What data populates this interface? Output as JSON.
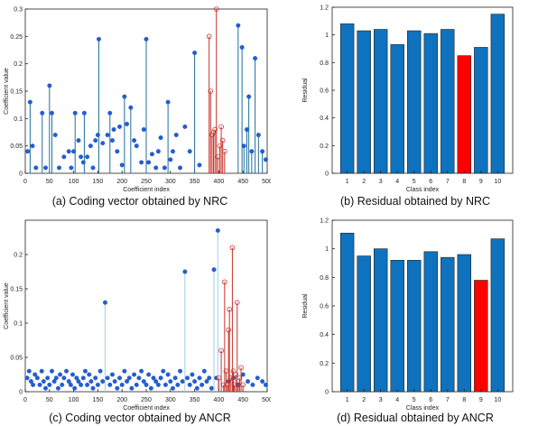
{
  "colors": {
    "blue": "#1f5fd6",
    "stem_blue": "#1f6f9c",
    "faint_blue": "#9fd0e8",
    "red": "#c8322a",
    "bar_blue": "#0e72be",
    "bar_red": "#ff0000"
  },
  "panels": [
    {
      "id": "a",
      "caption": "(a) Coding vector obtained by NRC",
      "chart_data": {
        "type": "scatter",
        "xlabel": "Coefficient index",
        "ylabel": "Coefficient value",
        "xlim": [
          0,
          500
        ],
        "ylim": [
          0,
          0.3
        ],
        "xticks": [
          0,
          50,
          100,
          150,
          200,
          250,
          300,
          350,
          400,
          450,
          500
        ],
        "xtick_labels": [
          "0",
          "50",
          "100",
          "150",
          "200",
          "250",
          "300",
          "350",
          "400",
          "450",
          "500"
        ],
        "yticks": [
          0,
          0.05,
          0.1,
          0.15,
          0.2,
          0.25,
          0.3
        ],
        "ytick_labels": [
          "0",
          "0.05",
          "0.1",
          "0.15",
          "0.2",
          "0.25",
          "0.3"
        ],
        "grid": false,
        "series": [
          {
            "style": "blue",
            "x": [
              5,
              10,
              15,
              22,
              35,
              42,
              50,
              55,
              62,
              70,
              80,
              90,
              95,
              100,
              103,
              110,
              115,
              120,
              122,
              128,
              135,
              140,
              145,
              150,
              152,
              160,
              170,
              175,
              180,
              183,
              190,
              195,
              200,
              205,
              210,
              218,
              225,
              230,
              240,
              245,
              250,
              255,
              262,
              270,
              275,
              280,
              288,
              295,
              300,
              305,
              312,
              320,
              330,
              340,
              350,
              360,
              440,
              448,
              452,
              458,
              462,
              468,
              475,
              482,
              490,
              497
            ],
            "y": [
              0.04,
              0.13,
              0.05,
              0.01,
              0.11,
              0.01,
              0.16,
              0.11,
              0.07,
              0.01,
              0.03,
              0.04,
              0.01,
              0.04,
              0.11,
              0.06,
              0.03,
              0.02,
              0.11,
              0.03,
              0.05,
              0.01,
              0.06,
              0.07,
              0.245,
              0.055,
              0.07,
              0.11,
              0.06,
              0.08,
              0.04,
              0.085,
              0.015,
              0.14,
              0.09,
              0.12,
              0.06,
              0.05,
              0.02,
              0.08,
              0.245,
              0.02,
              0.035,
              0.01,
              0.04,
              0.065,
              0.01,
              0.13,
              0.025,
              0.04,
              0.07,
              0.01,
              0.085,
              0.04,
              0.22,
              0.015,
              0.27,
              0.23,
              0.05,
              0.08,
              0.14,
              0.04,
              0.21,
              0.07,
              0.04,
              0.025
            ],
            "stems": [
              false,
              true,
              false,
              false,
              true,
              false,
              true,
              true,
              false,
              false,
              false,
              false,
              false,
              false,
              true,
              false,
              false,
              false,
              true,
              false,
              false,
              false,
              false,
              false,
              true,
              false,
              false,
              true,
              false,
              false,
              false,
              false,
              false,
              true,
              false,
              true,
              false,
              false,
              false,
              false,
              true,
              false,
              false,
              false,
              false,
              false,
              false,
              true,
              false,
              false,
              false,
              false,
              false,
              false,
              true,
              false,
              true,
              true,
              true,
              true,
              true,
              true,
              true,
              true,
              true,
              false
            ]
          },
          {
            "style": "red",
            "x": [
              380,
              383,
              386,
              389,
              392,
              395,
              398,
              402,
              405,
              408,
              412
            ],
            "y": [
              0.25,
              0.15,
              0.07,
              0.075,
              0.08,
              0.3,
              0.03,
              0.05,
              0.085,
              0.06,
              0.04
            ]
          }
        ]
      }
    },
    {
      "id": "b",
      "caption": "(b) Residual obtained by NRC",
      "chart_data": {
        "type": "bar",
        "xlabel": "Class index",
        "ylabel": "Residual",
        "categories": [
          "1",
          "2",
          "3",
          "4",
          "5",
          "6",
          "7",
          "8",
          "9",
          "10"
        ],
        "values": [
          1.08,
          1.03,
          1.04,
          0.93,
          1.03,
          1.01,
          1.04,
          0.85,
          0.91,
          1.15
        ],
        "highlight_index": 7,
        "ylim": [
          0,
          1.2
        ],
        "yticks": [
          0,
          0.2,
          0.4,
          0.6,
          0.8,
          1,
          1.2
        ],
        "ytick_labels": [
          "0",
          "0.2",
          "0.4",
          "0.6",
          "0.8",
          "1",
          "1.2"
        ],
        "grid": false
      }
    },
    {
      "id": "c",
      "caption": "(c) Coding vector obtained by ANCR",
      "chart_data": {
        "type": "scatter",
        "xlabel": "Coefficient index",
        "ylabel": "Coefficient value",
        "xlim": [
          0,
          500
        ],
        "ylim": [
          0,
          0.25
        ],
        "xticks": [
          0,
          50,
          100,
          150,
          200,
          250,
          300,
          350,
          400,
          450,
          500
        ],
        "xtick_labels": [
          "0",
          "50",
          "100",
          "150",
          "200",
          "250",
          "300",
          "350",
          "400",
          "450",
          "500"
        ],
        "yticks": [
          0,
          0.05,
          0.1,
          0.15,
          0.2
        ],
        "ytick_labels": [
          "0",
          "0.05",
          "0.1",
          "0.15",
          "0.2"
        ],
        "grid": false,
        "series": [
          {
            "style": "blue",
            "x": [
              4,
              8,
              12,
              16,
              20,
              25,
              30,
              34,
              38,
              42,
              46,
              50,
              55,
              60,
              64,
              68,
              72,
              76,
              80,
              85,
              90,
              94,
              98,
              102,
              106,
              110,
              115,
              120,
              124,
              128,
              132,
              136,
              140,
              145,
              150,
              155,
              160,
              165,
              170,
              175,
              180,
              185,
              190,
              195,
              200,
              205,
              210,
              215,
              220,
              225,
              230,
              235,
              240,
              245,
              250,
              255,
              260,
              265,
              270,
              275,
              280,
              285,
              290,
              295,
              300,
              305,
              310,
              315,
              320,
              325,
              330,
              335,
              340,
              345,
              350,
              355,
              360,
              365,
              370,
              375,
              380,
              385,
              390,
              395,
              398,
              420,
              430,
              440,
              450,
              460,
              470,
              480,
              490,
              497
            ],
            "y": [
              0.02,
              0.03,
              0.015,
              0.01,
              0.025,
              0.02,
              0.01,
              0.03,
              0.015,
              0.005,
              0.02,
              0.01,
              0.03,
              0.015,
              0.02,
              0.005,
              0.025,
              0.01,
              0.02,
              0.03,
              0.015,
              0.01,
              0.025,
              0.005,
              0.02,
              0.015,
              0.01,
              0.02,
              0.03,
              0.01,
              0.025,
              0.015,
              0.005,
              0.02,
              0.01,
              0.03,
              0.015,
              0.13,
              0.02,
              0.01,
              0.025,
              0.015,
              0.005,
              0.02,
              0.01,
              0.03,
              0.015,
              0.02,
              0.005,
              0.025,
              0.01,
              0.02,
              0.03,
              0.015,
              0.01,
              0.025,
              0.005,
              0.02,
              0.015,
              0.01,
              0.02,
              0.03,
              0.01,
              0.025,
              0.015,
              0.005,
              0.02,
              0.01,
              0.03,
              0.015,
              0.175,
              0.02,
              0.01,
              0.025,
              0.015,
              0.005,
              0.02,
              0.01,
              0.03,
              0.015,
              0.02,
              0.005,
              0.178,
              0.02,
              0.235,
              0.015,
              0.02,
              0.01,
              0.025,
              0.015,
              0.01,
              0.02,
              0.015,
              0.01
            ],
            "stems": [
              false,
              false,
              false,
              false,
              false,
              false,
              false,
              false,
              false,
              false,
              false,
              false,
              false,
              false,
              false,
              false,
              false,
              false,
              false,
              false,
              false,
              false,
              false,
              false,
              false,
              false,
              false,
              false,
              false,
              false,
              false,
              false,
              false,
              false,
              false,
              false,
              false,
              true,
              false,
              false,
              false,
              false,
              false,
              false,
              false,
              false,
              false,
              false,
              false,
              false,
              false,
              false,
              false,
              false,
              false,
              false,
              false,
              false,
              false,
              false,
              false,
              false,
              false,
              false,
              false,
              false,
              false,
              false,
              false,
              false,
              true,
              false,
              false,
              false,
              false,
              false,
              false,
              false,
              false,
              false,
              false,
              false,
              true,
              false,
              true,
              false,
              false,
              false,
              false,
              false,
              false,
              false,
              false,
              false
            ]
          },
          {
            "style": "red",
            "x": [
              400,
              405,
              410,
              412,
              415,
              418,
              420,
              422,
              425,
              428,
              430,
              432,
              435,
              438,
              440,
              443,
              446,
              450
            ],
            "y": [
              0.02,
              0.06,
              0.01,
              0.16,
              0.03,
              0.01,
              0.09,
              0.12,
              0.02,
              0.21,
              0.03,
              0.01,
              0.025,
              0.13,
              0.01,
              0.02,
              0.035,
              0.01
            ]
          }
        ]
      }
    },
    {
      "id": "d",
      "caption": "(d) Residual obtained by ANCR",
      "chart_data": {
        "type": "bar",
        "xlabel": "Class index",
        "ylabel": "Residual",
        "categories": [
          "1",
          "2",
          "3",
          "4",
          "5",
          "6",
          "7",
          "8",
          "9",
          "10"
        ],
        "values": [
          1.11,
          0.95,
          1.0,
          0.92,
          0.92,
          0.98,
          0.94,
          0.96,
          0.78,
          1.07
        ],
        "highlight_index": 8,
        "ylim": [
          0,
          1.2
        ],
        "yticks": [
          0,
          0.2,
          0.4,
          0.6,
          0.8,
          1,
          1.2
        ],
        "ytick_labels": [
          "0",
          "0.2",
          "0.4",
          "0.6",
          "0.8",
          "1",
          "1.2"
        ],
        "grid": false
      }
    }
  ]
}
